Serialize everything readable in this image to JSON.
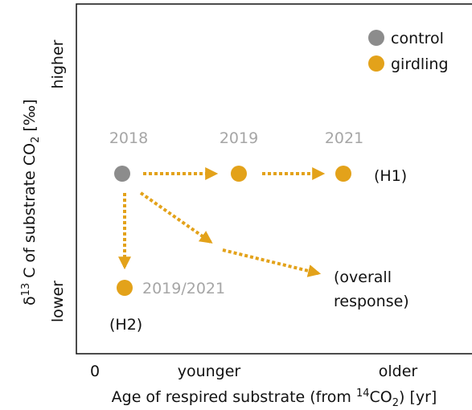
{
  "y_axis": {
    "label": [
      "δ",
      "13",
      " C of substrate CO",
      "2",
      " [‰]"
    ],
    "high": "higher",
    "low": "lower"
  },
  "x_axis": {
    "label": [
      "Age of respired substrate (from ",
      "14",
      "CO",
      "2",
      ") [yr]"
    ],
    "ticks": [
      "0",
      "younger",
      "older"
    ]
  },
  "legend": [
    {
      "label": "control",
      "color": "#8c8c8c"
    },
    {
      "label": "girdling",
      "color": "#e3a21a"
    }
  ],
  "nodes": [
    {
      "year": "2018",
      "group": "control"
    },
    {
      "year": "2019",
      "group": "girdling"
    },
    {
      "year": "2021",
      "group": "girdling"
    },
    {
      "year": "2019/2021",
      "group": "girdling"
    }
  ],
  "annotations": {
    "h1": "(H1)",
    "h2": "(H2)",
    "overall": [
      "(overall",
      "response)"
    ]
  }
}
